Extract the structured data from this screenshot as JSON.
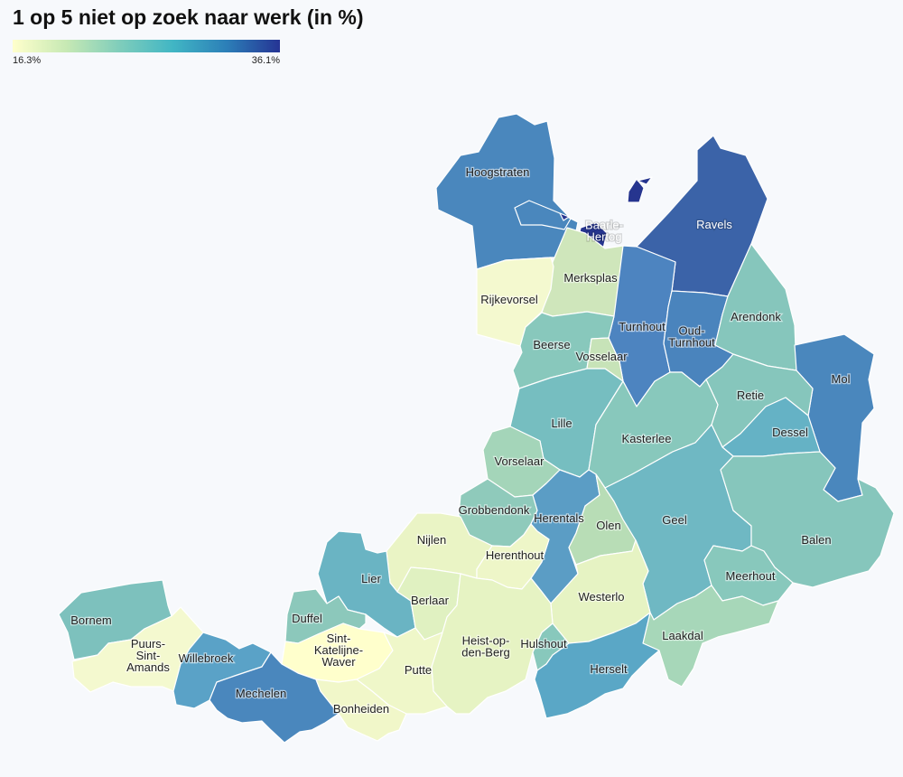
{
  "title": "1 op 5 niet op zoek naar werk (in %)",
  "legend": {
    "min_label": "16.3%",
    "max_label": "36.1%",
    "colors": [
      "#ffffcc",
      "#c7e9b4",
      "#7fcdbb",
      "#41b6c4",
      "#2c7fb8",
      "#253494"
    ]
  },
  "municipalities": [
    {
      "key": "hoogstraten",
      "name": "Hoogstraten",
      "color": "#4a87bd"
    },
    {
      "key": "baarle-hertog",
      "name": "Baarle-\nHertog",
      "color": "#26358f"
    },
    {
      "key": "ravels",
      "name": "Ravels",
      "color": "#3b63a8"
    },
    {
      "key": "merksplas",
      "name": "Merksplas",
      "color": "#cfe6bb"
    },
    {
      "key": "rijkevorsel",
      "name": "Rijkevorsel",
      "color": "#f4f9cf"
    },
    {
      "key": "turnhout",
      "name": "Turnhout",
      "color": "#4d84c0"
    },
    {
      "key": "oud-turnhout",
      "name": "Oud-\nTurnhout",
      "color": "#4a84bd"
    },
    {
      "key": "arendonk",
      "name": "Arendonk",
      "color": "#86c6bc"
    },
    {
      "key": "beerse",
      "name": "Beerse",
      "color": "#88c8bc"
    },
    {
      "key": "vosselaar",
      "name": "Vosselaar",
      "color": "#c7e3b8"
    },
    {
      "key": "mol",
      "name": "Mol",
      "color": "#4a87bd"
    },
    {
      "key": "retie",
      "name": "Retie",
      "color": "#86c6bc"
    },
    {
      "key": "lille",
      "name": "Lille",
      "color": "#76bec0"
    },
    {
      "key": "kasterlee",
      "name": "Kasterlee",
      "color": "#88c8bc"
    },
    {
      "key": "dessel",
      "name": "Dessel",
      "color": "#65b2c5"
    },
    {
      "key": "vorselaar",
      "name": "Vorselaar",
      "color": "#a4d5b9"
    },
    {
      "key": "grobbendonk",
      "name": "Grobbendonk",
      "color": "#8fcabb"
    },
    {
      "key": "herentals",
      "name": "Herentals",
      "color": "#5b9dc5"
    },
    {
      "key": "olen",
      "name": "Olen",
      "color": "#b8ddb6"
    },
    {
      "key": "geel",
      "name": "Geel",
      "color": "#6fb8c3"
    },
    {
      "key": "balen",
      "name": "Balen",
      "color": "#86c6bc"
    },
    {
      "key": "nijlen",
      "name": "Nijlen",
      "color": "#eaf4c5"
    },
    {
      "key": "herenthout",
      "name": "Herenthout",
      "color": "#eef6c8"
    },
    {
      "key": "lier",
      "name": "Lier",
      "color": "#6ab4c3"
    },
    {
      "key": "berlaar",
      "name": "Berlaar",
      "color": "#e0f1c1"
    },
    {
      "key": "westerlo",
      "name": "Westerlo",
      "color": "#e6f3c3"
    },
    {
      "key": "meerhout",
      "name": "Meerhout",
      "color": "#88c8bc"
    },
    {
      "key": "bornem",
      "name": "Bornem",
      "color": "#7dc1bd"
    },
    {
      "key": "duffel",
      "name": "Duffel",
      "color": "#8cc8bb"
    },
    {
      "key": "laakdal",
      "name": "Laakdal",
      "color": "#a7d7b9"
    },
    {
      "key": "puurs-sint-amands",
      "name": "Puurs-\nSint-\nAmands",
      "color": "#f4f9cf"
    },
    {
      "key": "willebroek",
      "name": "Willebroek",
      "color": "#5aa2c7"
    },
    {
      "key": "sint-katelijne-waver",
      "name": "Sint-\nKatelijne-\nWaver",
      "color": "#ffffcc"
    },
    {
      "key": "heist-op-den-berg",
      "name": "Heist-op-\nden-Berg",
      "color": "#e6f3c3"
    },
    {
      "key": "hulshout",
      "name": "Hulshout",
      "color": "#88c8bc"
    },
    {
      "key": "putte",
      "name": "Putte",
      "color": "#eff7c9"
    },
    {
      "key": "herselt",
      "name": "Herselt",
      "color": "#5aa7c6"
    },
    {
      "key": "mechelen",
      "name": "Mechelen",
      "color": "#4a87bd"
    },
    {
      "key": "bonheiden",
      "name": "Bonheiden",
      "color": "#f1f7c9"
    }
  ]
}
